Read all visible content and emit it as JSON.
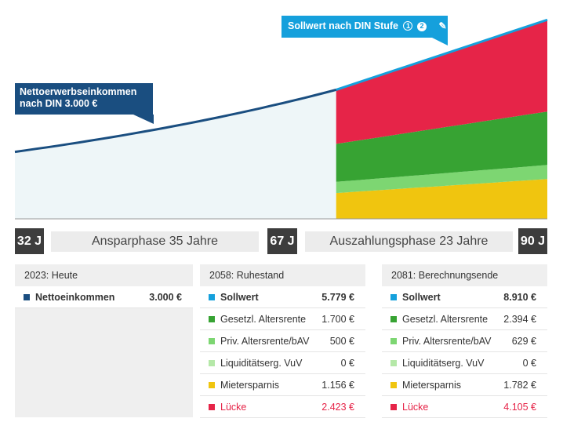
{
  "colors": {
    "income_line": "#1a4e80",
    "income_fill": "#eef6f8",
    "sollwert": "#15a0dc",
    "gesetzl": "#37a333",
    "priv": "#7dd672",
    "liquid": "#b5e8a8",
    "mieter": "#f0c50f",
    "luecke": "#e62448"
  },
  "chart_data": {
    "type": "area",
    "x_unit": "age",
    "xlim": [
      32,
      90
    ],
    "ylim": [
      0,
      9200
    ],
    "currency": "€",
    "income_series": {
      "x": [
        32,
        67
      ],
      "values": [
        3000,
        5779
      ]
    },
    "sollwert_series": {
      "x": [
        67,
        90
      ],
      "values": [
        5779,
        8910
      ]
    },
    "stacked_series": {
      "x": [
        67,
        90
      ],
      "layers": [
        {
          "name": "Mietersparnis",
          "values": [
            1156,
            1782
          ],
          "color_key": "mieter"
        },
        {
          "name": "Liquiditätserg. VuV",
          "values": [
            0,
            0
          ],
          "color_key": "liquid"
        },
        {
          "name": "Priv. Altersrente/bAV",
          "values": [
            500,
            629
          ],
          "color_key": "priv"
        },
        {
          "name": "Gesetzl. Altersrente",
          "values": [
            1700,
            2394
          ],
          "color_key": "gesetzl"
        },
        {
          "name": "Lücke",
          "values": [
            2423,
            4105
          ],
          "color_key": "luecke"
        }
      ]
    }
  },
  "callouts": {
    "income_line1": "Nettoerwerbseinkommen",
    "income_line2": "nach DIN 3.000 €",
    "sollwert_text": "Sollwert nach DIN Stufe",
    "badge1": "1",
    "badge2": "2",
    "edit_icon": "pencil-icon"
  },
  "timeline": {
    "age_start": "32 J",
    "phase1": "Ansparphase 35 Jahre",
    "age_retire": "67 J",
    "phase2": "Auszahlungsphase 23 Jahre",
    "age_end": "90 J"
  },
  "panels": [
    {
      "header": "2023: Heute",
      "rows": [
        {
          "label": "Nettoeinkommen",
          "value": "3.000 €",
          "color_key": "income_line",
          "style": "bold"
        }
      ]
    },
    {
      "header": "2058: Ruhestand",
      "rows": [
        {
          "label": "Sollwert",
          "value": "5.779 €",
          "color_key": "sollwert",
          "style": "bold"
        },
        {
          "label": "Gesetzl. Altersrente",
          "value": "1.700 €",
          "color_key": "gesetzl",
          "style": ""
        },
        {
          "label": "Priv. Altersrente/bAV",
          "value": "500 €",
          "color_key": "priv",
          "style": ""
        },
        {
          "label": "Liquiditätserg. VuV",
          "value": "0 €",
          "color_key": "liquid",
          "style": ""
        },
        {
          "label": "Mietersparnis",
          "value": "1.156 €",
          "color_key": "mieter",
          "style": ""
        },
        {
          "label": "Lücke",
          "value": "2.423 €",
          "color_key": "luecke",
          "style": "red"
        }
      ]
    },
    {
      "header": "2081: Berechnungsende",
      "rows": [
        {
          "label": "Sollwert",
          "value": "8.910 €",
          "color_key": "sollwert",
          "style": "bold"
        },
        {
          "label": "Gesetzl. Altersrente",
          "value": "2.394 €",
          "color_key": "gesetzl",
          "style": ""
        },
        {
          "label": "Priv. Altersrente/bAV",
          "value": "629 €",
          "color_key": "priv",
          "style": ""
        },
        {
          "label": "Liquiditätserg. VuV",
          "value": "0 €",
          "color_key": "liquid",
          "style": ""
        },
        {
          "label": "Mietersparnis",
          "value": "1.782 €",
          "color_key": "mieter",
          "style": ""
        },
        {
          "label": "Lücke",
          "value": "4.105 €",
          "color_key": "luecke",
          "style": "red"
        }
      ]
    }
  ]
}
